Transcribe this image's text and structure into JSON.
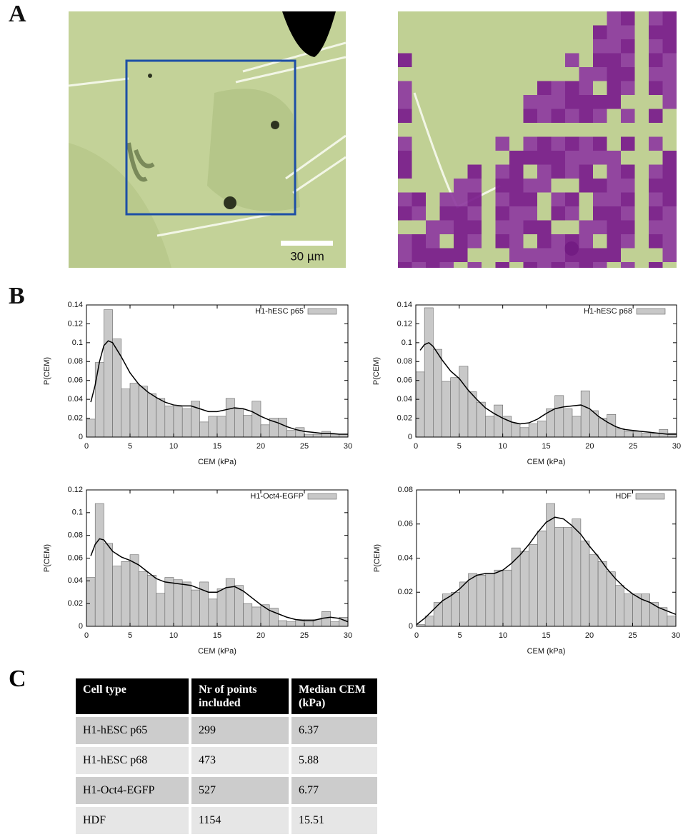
{
  "panel_labels": [
    "A",
    "B",
    "C"
  ],
  "panel_a": {
    "scale_bar": "30 µm"
  },
  "chart_data": [
    {
      "type": "histogram",
      "legend": "upper right",
      "xlabel": "CEM (kPa)",
      "ylabel": "P(CEM)",
      "bins": [
        0,
        1,
        2,
        3,
        4,
        5,
        6,
        7,
        8,
        9,
        10,
        11,
        12,
        13,
        14,
        15,
        16,
        17,
        18,
        19,
        20,
        21,
        22,
        23,
        24,
        25,
        26,
        27,
        28,
        29,
        30
      ],
      "series": [
        {
          "name": "H1-hESC p65",
          "color": "#c8c8c8",
          "values": [
            0.019,
            0.079,
            0.135,
            0.104,
            0.051,
            0.057,
            0.054,
            0.046,
            0.041,
            0.033,
            0.032,
            0.03,
            0.038,
            0.016,
            0.022,
            0.022,
            0.041,
            0.03,
            0.023,
            0.038,
            0.013,
            0.02,
            0.02,
            0.007,
            0.01,
            0.003,
            0.003,
            0.006,
            0.003,
            0.003
          ]
        }
      ],
      "curve": {
        "color": "#000000",
        "x": [
          0.5,
          1,
          1.5,
          2,
          2.5,
          3,
          4,
          5,
          6,
          7,
          8,
          9,
          10,
          11,
          12,
          13,
          14,
          15,
          16,
          17,
          18,
          19,
          20,
          21,
          22,
          23,
          24,
          25,
          26,
          27,
          28,
          29,
          30
        ],
        "values": [
          0.037,
          0.055,
          0.08,
          0.097,
          0.102,
          0.1,
          0.085,
          0.068,
          0.056,
          0.048,
          0.042,
          0.037,
          0.034,
          0.033,
          0.033,
          0.03,
          0.027,
          0.027,
          0.029,
          0.031,
          0.03,
          0.027,
          0.022,
          0.018,
          0.015,
          0.011,
          0.008,
          0.006,
          0.005,
          0.004,
          0.004,
          0.003,
          0.003
        ]
      },
      "xlim": [
        0,
        30
      ],
      "ylim": [
        0,
        0.14
      ],
      "xticks": [
        0,
        5,
        10,
        15,
        20,
        25,
        30
      ],
      "yticks": [
        0,
        0.02,
        0.04,
        0.06,
        0.08,
        0.1,
        0.12,
        0.14
      ]
    },
    {
      "type": "histogram",
      "legend": "upper right",
      "xlabel": "CEM (kPa)",
      "ylabel": "P(CEM)",
      "bins": [
        0,
        1,
        2,
        3,
        4,
        5,
        6,
        7,
        8,
        9,
        10,
        11,
        12,
        13,
        14,
        15,
        16,
        17,
        18,
        19,
        20,
        21,
        22,
        23,
        24,
        25,
        26,
        27,
        28,
        29,
        30
      ],
      "series": [
        {
          "name": "H1-hESC p68",
          "color": "#c8c8c8",
          "values": [
            0.069,
            0.137,
            0.093,
            0.059,
            0.063,
            0.075,
            0.048,
            0.037,
            0.022,
            0.034,
            0.022,
            0.014,
            0.01,
            0.014,
            0.017,
            0.03,
            0.044,
            0.03,
            0.022,
            0.049,
            0.028,
            0.02,
            0.024,
            0.009,
            0.006,
            0.006,
            0.004,
            0.004,
            0.008,
            0.004
          ]
        }
      ],
      "curve": {
        "color": "#000000",
        "x": [
          0.5,
          1,
          1.5,
          2,
          3,
          4,
          5,
          6,
          7,
          8,
          9,
          10,
          11,
          12,
          13,
          14,
          15,
          16,
          17,
          18,
          19,
          20,
          21,
          22,
          23,
          24,
          25,
          26,
          27,
          28,
          29,
          30
        ],
        "values": [
          0.092,
          0.098,
          0.1,
          0.096,
          0.082,
          0.07,
          0.062,
          0.05,
          0.04,
          0.031,
          0.025,
          0.02,
          0.016,
          0.014,
          0.015,
          0.019,
          0.025,
          0.03,
          0.032,
          0.033,
          0.034,
          0.03,
          0.022,
          0.016,
          0.011,
          0.008,
          0.007,
          0.006,
          0.005,
          0.004,
          0.003,
          0.003
        ]
      },
      "xlim": [
        0,
        30
      ],
      "ylim": [
        0,
        0.14
      ],
      "xticks": [
        0,
        5,
        10,
        15,
        20,
        25,
        30
      ],
      "yticks": [
        0,
        0.02,
        0.04,
        0.06,
        0.08,
        0.1,
        0.12,
        0.14
      ]
    },
    {
      "type": "histogram",
      "legend": "upper right",
      "xlabel": "CEM (kPa)",
      "ylabel": "P(CEM)",
      "bins": [
        0,
        1,
        2,
        3,
        4,
        5,
        6,
        7,
        8,
        9,
        10,
        11,
        12,
        13,
        14,
        15,
        16,
        17,
        18,
        19,
        20,
        21,
        22,
        23,
        24,
        25,
        26,
        27,
        28,
        29,
        30
      ],
      "series": [
        {
          "name": "H1-Oct4-EGFP",
          "color": "#c8c8c8",
          "values": [
            0.043,
            0.108,
            0.073,
            0.053,
            0.057,
            0.063,
            0.048,
            0.045,
            0.029,
            0.043,
            0.041,
            0.039,
            0.032,
            0.039,
            0.024,
            0.033,
            0.042,
            0.036,
            0.02,
            0.017,
            0.019,
            0.016,
            0.005,
            0.004,
            0.006,
            0.006,
            0.006,
            0.013,
            0.004,
            0.008
          ]
        }
      ],
      "curve": {
        "color": "#000000",
        "x": [
          0.5,
          1,
          1.5,
          2,
          3,
          4,
          5,
          6,
          7,
          8,
          9,
          10,
          11,
          12,
          13,
          14,
          15,
          16,
          17,
          18,
          19,
          20,
          21,
          22,
          23,
          24,
          25,
          26,
          27,
          28,
          29,
          30
        ],
        "values": [
          0.062,
          0.072,
          0.077,
          0.076,
          0.066,
          0.061,
          0.058,
          0.054,
          0.048,
          0.042,
          0.039,
          0.038,
          0.037,
          0.036,
          0.033,
          0.03,
          0.03,
          0.034,
          0.035,
          0.031,
          0.025,
          0.019,
          0.014,
          0.011,
          0.008,
          0.006,
          0.005,
          0.005,
          0.007,
          0.008,
          0.007,
          0.004
        ]
      },
      "xlim": [
        0,
        30
      ],
      "ylim": [
        0,
        0.12
      ],
      "xticks": [
        0,
        5,
        10,
        15,
        20,
        25,
        30
      ],
      "yticks": [
        0,
        0.02,
        0.04,
        0.06,
        0.08,
        0.1,
        0.12
      ]
    },
    {
      "type": "histogram",
      "legend": "upper right",
      "xlabel": "CEM (kPa)",
      "ylabel": "P(CEM)",
      "bins": [
        0,
        1,
        2,
        3,
        4,
        5,
        6,
        7,
        8,
        9,
        10,
        11,
        12,
        13,
        14,
        15,
        16,
        17,
        18,
        19,
        20,
        21,
        22,
        23,
        24,
        25,
        26,
        27,
        28,
        29,
        30
      ],
      "series": [
        {
          "name": "HDF",
          "color": "#c8c8c8",
          "values": [
            0.001,
            0.006,
            0.014,
            0.019,
            0.02,
            0.026,
            0.031,
            0.03,
            0.031,
            0.033,
            0.033,
            0.046,
            0.044,
            0.048,
            0.056,
            0.072,
            0.058,
            0.058,
            0.063,
            0.05,
            0.042,
            0.038,
            0.032,
            0.024,
            0.019,
            0.019,
            0.019,
            0.014,
            0.011,
            0.006
          ]
        }
      ],
      "curve": {
        "color": "#000000",
        "x": [
          0,
          1,
          2,
          3,
          4,
          5,
          6,
          7,
          8,
          9,
          10,
          11,
          12,
          13,
          14,
          15,
          16,
          17,
          18,
          19,
          20,
          21,
          22,
          23,
          24,
          25,
          26,
          27,
          28,
          29,
          30
        ],
        "values": [
          0.001,
          0.005,
          0.01,
          0.015,
          0.018,
          0.022,
          0.027,
          0.03,
          0.031,
          0.031,
          0.033,
          0.037,
          0.042,
          0.048,
          0.055,
          0.061,
          0.064,
          0.063,
          0.059,
          0.054,
          0.047,
          0.041,
          0.034,
          0.028,
          0.023,
          0.019,
          0.016,
          0.014,
          0.011,
          0.009,
          0.007
        ]
      },
      "xlim": [
        0,
        30
      ],
      "ylim": [
        0,
        0.08
      ],
      "xticks": [
        0,
        5,
        10,
        15,
        20,
        25,
        30
      ],
      "yticks": [
        0,
        0.02,
        0.04,
        0.06,
        0.08
      ]
    }
  ],
  "table": {
    "header": [
      "Cell type",
      "Nr of points included",
      "Median CEM (kPa)"
    ],
    "rows": [
      [
        "H1-hESC p65",
        299,
        6.37
      ],
      [
        "H1-hESC p68",
        473,
        5.88
      ],
      [
        "H1-Oct4-EGFP",
        527,
        6.77
      ],
      [
        "HDF",
        1154,
        15.51
      ]
    ]
  }
}
